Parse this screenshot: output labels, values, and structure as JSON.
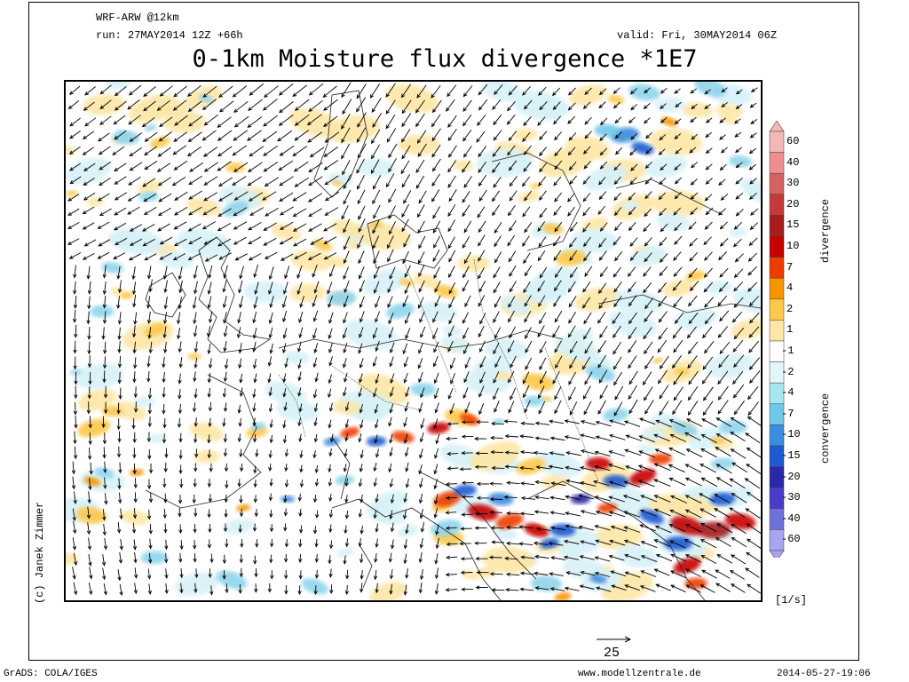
{
  "header": {
    "model": "WRF-ARW @12km",
    "run": "run: 27MAY2014 12Z +66h",
    "valid": "valid: Fri, 30MAY2014 06Z",
    "title": "0-1km Moisture flux divergence *1E7"
  },
  "credit": "(c) Janek Zimmer",
  "colorbar": {
    "levels": [
      "60",
      "40",
      "30",
      "20",
      "15",
      "10",
      "7",
      "4",
      "2",
      "1",
      "-1",
      "-2",
      "-4",
      "-7",
      "-10",
      "-15",
      "-20",
      "-30",
      "-40",
      "-60"
    ],
    "colors": [
      "#f5b6b6",
      "#ee8e8e",
      "#d76060",
      "#c43a3a",
      "#a81c1c",
      "#c80000",
      "#ee3c00",
      "#f79400",
      "#fcc84a",
      "#fde6a6",
      "#ffffff",
      "#e2f6fb",
      "#a6e6f0",
      "#6fc8e8",
      "#3c8ce0",
      "#1e5ad2",
      "#2a28a8",
      "#4a3cc8",
      "#7070dc",
      "#a8a4f0"
    ],
    "divergence_label": "divergence",
    "convergence_label": "convergence",
    "units": "[1/s]"
  },
  "reference_vector": {
    "value": "25"
  },
  "footer": {
    "left": "GrADS: COLA/IGES",
    "middle": "www.modellzentrale.de",
    "right": "2014-05-27-19:06"
  }
}
